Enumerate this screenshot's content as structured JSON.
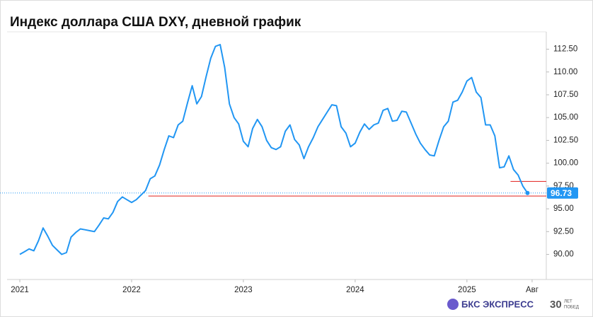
{
  "chart_data": {
    "type": "line",
    "title": "Индекс доллара США DXY, дневной график",
    "x": [
      2021,
      2021.042,
      2021.083,
      2021.125,
      2021.167,
      2021.208,
      2021.25,
      2021.292,
      2021.333,
      2021.375,
      2021.417,
      2021.458,
      2021.5,
      2021.542,
      2021.583,
      2021.625,
      2021.667,
      2021.708,
      2021.75,
      2021.792,
      2021.833,
      2021.875,
      2021.917,
      2021.958,
      2022,
      2022.042,
      2022.083,
      2022.125,
      2022.167,
      2022.208,
      2022.25,
      2022.292,
      2022.333,
      2022.375,
      2022.417,
      2022.458,
      2022.5,
      2022.542,
      2022.583,
      2022.625,
      2022.667,
      2022.708,
      2022.75,
      2022.792,
      2022.833,
      2022.875,
      2022.917,
      2022.958,
      2023,
      2023.042,
      2023.083,
      2023.125,
      2023.167,
      2023.208,
      2023.25,
      2023.292,
      2023.333,
      2023.375,
      2023.417,
      2023.458,
      2023.5,
      2023.542,
      2023.583,
      2023.625,
      2023.667,
      2023.708,
      2023.75,
      2023.792,
      2023.833,
      2023.875,
      2023.917,
      2023.958,
      2024,
      2024.042,
      2024.083,
      2024.125,
      2024.167,
      2024.208,
      2024.25,
      2024.292,
      2024.333,
      2024.375,
      2024.417,
      2024.458,
      2024.5,
      2024.542,
      2024.583,
      2024.625,
      2024.667,
      2024.708,
      2024.75,
      2024.792,
      2024.833,
      2024.875,
      2024.917,
      2024.958,
      2025,
      2025.042,
      2025.083,
      2025.125,
      2025.167,
      2025.208,
      2025.25,
      2025.292,
      2025.333,
      2025.375,
      2025.417,
      2025.458,
      2025.5,
      2025.542
    ],
    "series": [
      {
        "color": "#2196f3",
        "values": [
          90.0,
          90.3,
          90.6,
          90.4,
          91.5,
          92.9,
          92.0,
          91.0,
          90.5,
          90.0,
          90.2,
          91.9,
          92.4,
          92.8,
          92.7,
          92.6,
          92.5,
          93.2,
          94.0,
          93.9,
          94.6,
          95.8,
          96.3,
          96.0,
          95.7,
          96.0,
          96.5,
          97.0,
          98.3,
          98.6,
          99.8,
          101.5,
          103.0,
          102.8,
          104.2,
          104.6,
          106.6,
          108.5,
          106.5,
          107.3,
          109.5,
          111.5,
          112.8,
          113.0,
          110.5,
          106.5,
          105.0,
          104.3,
          102.4,
          101.8,
          103.8,
          104.8,
          104.0,
          102.5,
          101.7,
          101.5,
          101.8,
          103.5,
          104.2,
          102.6,
          102.0,
          100.5,
          101.8,
          102.8,
          104.0,
          104.8,
          105.6,
          106.4,
          106.3,
          104.0,
          103.3,
          101.8,
          102.2,
          103.4,
          104.3,
          103.7,
          104.2,
          104.4,
          105.8,
          106.0,
          104.6,
          104.7,
          105.7,
          105.6,
          104.4,
          103.2,
          102.2,
          101.5,
          100.9,
          100.8,
          102.5,
          104.0,
          104.6,
          106.7,
          106.9,
          107.8,
          109.0,
          109.4,
          107.8,
          107.2,
          104.2,
          104.2,
          103.0,
          99.5,
          99.6,
          100.8,
          99.3,
          98.7,
          97.5,
          96.73
        ]
      }
    ],
    "xlim": [
      2020.886,
      2025.71
    ],
    "xticks": [
      2021,
      2022,
      2023,
      2024,
      2025,
      {
        "value": 2025.583,
        "label": "Авг"
      }
    ],
    "ylim": [
      87.25,
      114.4
    ],
    "yticks": [
      {
        "value": 90,
        "label": "90.00"
      },
      {
        "value": 92.5,
        "label": "92.50"
      },
      {
        "value": 95,
        "label": "95.00"
      },
      {
        "value": 97.5,
        "label": "97.50"
      },
      {
        "value": 100,
        "label": "100.00"
      },
      {
        "value": 102.5,
        "label": "102.50"
      },
      {
        "value": 105,
        "label": "105.00"
      },
      {
        "value": 107.5,
        "label": "107.50"
      },
      {
        "value": 110,
        "label": "110.00"
      },
      {
        "value": 112.5,
        "label": "112.50"
      }
    ],
    "reference_lines": [
      {
        "value": 96.73,
        "color": "#2196f3",
        "dotted": true
      },
      {
        "value": 96.4,
        "from": 2022.15,
        "color": "#e53935"
      },
      {
        "value": 98.0,
        "from": 2025.39,
        "color": "#e53935"
      }
    ]
  },
  "branding": {
    "logo": "БКС ЭКСПРЕСС",
    "badge": "30",
    "badge_top": "ЛЕТ",
    "badge_bottom": "ПОБЕД"
  }
}
